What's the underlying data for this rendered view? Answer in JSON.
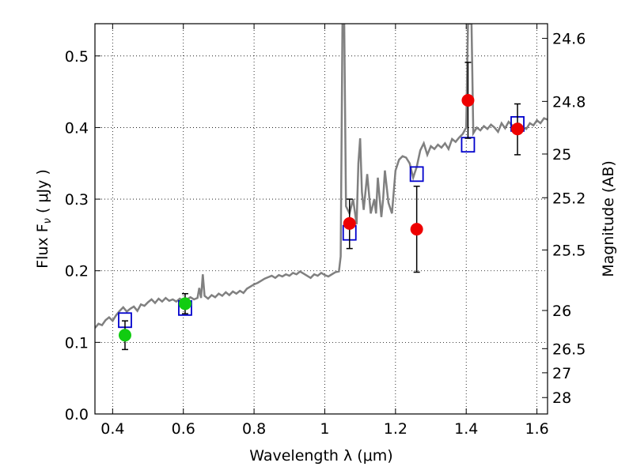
{
  "chart_data": {
    "type": "scatter",
    "xlabel": "Wavelength  λ (μm)",
    "ylabel": "Flux  F",
    "ylabel_subscript": "ν",
    "ylabel_units": "  ( μJy )",
    "y2label": "Magnitude (AB)",
    "xlim": [
      0.35,
      1.63
    ],
    "ylim": [
      0.0,
      0.545
    ],
    "grid": true,
    "x_ticks": [
      0.4,
      0.6,
      0.8,
      1.0,
      1.2,
      1.4,
      1.6
    ],
    "x_tick_labels": [
      "0.4",
      "0.6",
      "0.8",
      "1",
      "1.2",
      "1.4",
      "1.6"
    ],
    "y_ticks": [
      0.0,
      0.1,
      0.2,
      0.3,
      0.4,
      0.5
    ],
    "y_tick_labels": [
      "0.0",
      "0.1",
      "0.2",
      "0.3",
      "0.4",
      "0.5"
    ],
    "y2_ticks": [
      {
        "flux": 0.5245,
        "label": "24.6"
      },
      {
        "flux": 0.4365,
        "label": "24.8"
      },
      {
        "flux": 0.363,
        "label": "25"
      },
      {
        "flux": 0.302,
        "label": "25.2"
      },
      {
        "flux": 0.229,
        "label": "25.5"
      },
      {
        "flux": 0.1445,
        "label": "26"
      },
      {
        "flux": 0.0912,
        "label": "26.5"
      },
      {
        "flux": 0.0575,
        "label": "27"
      },
      {
        "flux": 0.0229,
        "label": "28"
      }
    ],
    "series": [
      {
        "kind": "line",
        "color": "#808080",
        "points": [
          [
            0.35,
            0.12
          ],
          [
            0.36,
            0.126
          ],
          [
            0.37,
            0.124
          ],
          [
            0.38,
            0.131
          ],
          [
            0.39,
            0.135
          ],
          [
            0.4,
            0.13
          ],
          [
            0.41,
            0.138
          ],
          [
            0.42,
            0.144
          ],
          [
            0.43,
            0.149
          ],
          [
            0.44,
            0.143
          ],
          [
            0.45,
            0.147
          ],
          [
            0.46,
            0.15
          ],
          [
            0.47,
            0.144
          ],
          [
            0.48,
            0.153
          ],
          [
            0.49,
            0.151
          ],
          [
            0.5,
            0.156
          ],
          [
            0.51,
            0.16
          ],
          [
            0.52,
            0.155
          ],
          [
            0.53,
            0.161
          ],
          [
            0.54,
            0.157
          ],
          [
            0.55,
            0.162
          ],
          [
            0.56,
            0.158
          ],
          [
            0.57,
            0.16
          ],
          [
            0.58,
            0.157
          ],
          [
            0.59,
            0.161
          ],
          [
            0.6,
            0.158
          ],
          [
            0.61,
            0.16
          ],
          [
            0.62,
            0.163
          ],
          [
            0.63,
            0.16
          ],
          [
            0.64,
            0.162
          ],
          [
            0.645,
            0.176
          ],
          [
            0.65,
            0.162
          ],
          [
            0.655,
            0.195
          ],
          [
            0.66,
            0.165
          ],
          [
            0.67,
            0.161
          ],
          [
            0.68,
            0.166
          ],
          [
            0.69,
            0.163
          ],
          [
            0.7,
            0.168
          ],
          [
            0.71,
            0.165
          ],
          [
            0.72,
            0.17
          ],
          [
            0.73,
            0.166
          ],
          [
            0.74,
            0.171
          ],
          [
            0.75,
            0.168
          ],
          [
            0.76,
            0.172
          ],
          [
            0.77,
            0.169
          ],
          [
            0.78,
            0.175
          ],
          [
            0.79,
            0.178
          ],
          [
            0.8,
            0.181
          ],
          [
            0.81,
            0.183
          ],
          [
            0.82,
            0.186
          ],
          [
            0.83,
            0.189
          ],
          [
            0.84,
            0.191
          ],
          [
            0.85,
            0.193
          ],
          [
            0.86,
            0.19
          ],
          [
            0.87,
            0.194
          ],
          [
            0.88,
            0.192
          ],
          [
            0.89,
            0.195
          ],
          [
            0.9,
            0.193
          ],
          [
            0.91,
            0.197
          ],
          [
            0.92,
            0.195
          ],
          [
            0.93,
            0.199
          ],
          [
            0.94,
            0.196
          ],
          [
            0.95,
            0.193
          ],
          [
            0.96,
            0.19
          ],
          [
            0.97,
            0.195
          ],
          [
            0.98,
            0.193
          ],
          [
            0.99,
            0.197
          ],
          [
            1.0,
            0.194
          ],
          [
            1.01,
            0.192
          ],
          [
            1.02,
            0.195
          ],
          [
            1.03,
            0.198
          ],
          [
            1.04,
            0.199
          ],
          [
            1.045,
            0.22
          ],
          [
            1.05,
            0.545
          ],
          [
            1.055,
            0.545
          ],
          [
            1.06,
            0.29
          ],
          [
            1.07,
            0.28
          ],
          [
            1.08,
            0.3
          ],
          [
            1.09,
            0.265
          ],
          [
            1.095,
            0.35
          ],
          [
            1.1,
            0.385
          ],
          [
            1.105,
            0.31
          ],
          [
            1.11,
            0.285
          ],
          [
            1.12,
            0.335
          ],
          [
            1.13,
            0.28
          ],
          [
            1.14,
            0.3
          ],
          [
            1.145,
            0.28
          ],
          [
            1.15,
            0.33
          ],
          [
            1.16,
            0.275
          ],
          [
            1.165,
            0.3
          ],
          [
            1.17,
            0.34
          ],
          [
            1.18,
            0.295
          ],
          [
            1.19,
            0.28
          ],
          [
            1.2,
            0.34
          ],
          [
            1.21,
            0.355
          ],
          [
            1.22,
            0.36
          ],
          [
            1.23,
            0.358
          ],
          [
            1.24,
            0.35
          ],
          [
            1.25,
            0.33
          ],
          [
            1.26,
            0.345
          ],
          [
            1.27,
            0.368
          ],
          [
            1.28,
            0.378
          ],
          [
            1.29,
            0.362
          ],
          [
            1.3,
            0.374
          ],
          [
            1.31,
            0.37
          ],
          [
            1.32,
            0.376
          ],
          [
            1.33,
            0.372
          ],
          [
            1.34,
            0.378
          ],
          [
            1.35,
            0.37
          ],
          [
            1.36,
            0.384
          ],
          [
            1.37,
            0.38
          ],
          [
            1.38,
            0.386
          ],
          [
            1.39,
            0.391
          ],
          [
            1.4,
            0.4
          ],
          [
            1.405,
            0.545
          ],
          [
            1.415,
            0.545
          ],
          [
            1.42,
            0.392
          ],
          [
            1.43,
            0.4
          ],
          [
            1.44,
            0.396
          ],
          [
            1.45,
            0.402
          ],
          [
            1.46,
            0.398
          ],
          [
            1.47,
            0.404
          ],
          [
            1.48,
            0.4
          ],
          [
            1.49,
            0.394
          ],
          [
            1.5,
            0.406
          ],
          [
            1.51,
            0.399
          ],
          [
            1.52,
            0.408
          ],
          [
            1.53,
            0.403
          ],
          [
            1.54,
            0.396
          ],
          [
            1.55,
            0.405
          ],
          [
            1.56,
            0.4
          ],
          [
            1.57,
            0.398
          ],
          [
            1.58,
            0.406
          ],
          [
            1.59,
            0.403
          ],
          [
            1.6,
            0.41
          ],
          [
            1.61,
            0.406
          ],
          [
            1.62,
            0.413
          ],
          [
            1.63,
            0.411
          ]
        ]
      },
      {
        "kind": "open-square",
        "color": "#0000cc",
        "points": [
          [
            0.435,
            0.131
          ],
          [
            0.605,
            0.148
          ],
          [
            1.07,
            0.253
          ],
          [
            1.26,
            0.335
          ],
          [
            1.405,
            0.376
          ],
          [
            1.545,
            0.405
          ]
        ]
      },
      {
        "kind": "filled-circle",
        "color": "#11cc11",
        "points": [
          {
            "x": 0.435,
            "y": 0.11,
            "err_low": 0.09,
            "err_high": 0.13
          },
          {
            "x": 0.605,
            "y": 0.154,
            "err_low": 0.14,
            "err_high": 0.168
          }
        ]
      },
      {
        "kind": "filled-circle",
        "color": "#ee0000",
        "points": [
          {
            "x": 1.07,
            "y": 0.266,
            "err_low": 0.231,
            "err_high": 0.3
          },
          {
            "x": 1.26,
            "y": 0.258,
            "err_low": 0.198,
            "err_high": 0.318
          },
          {
            "x": 1.405,
            "y": 0.438,
            "err_low": 0.385,
            "err_high": 0.491
          },
          {
            "x": 1.545,
            "y": 0.398,
            "err_low": 0.362,
            "err_high": 0.433
          }
        ]
      }
    ]
  }
}
